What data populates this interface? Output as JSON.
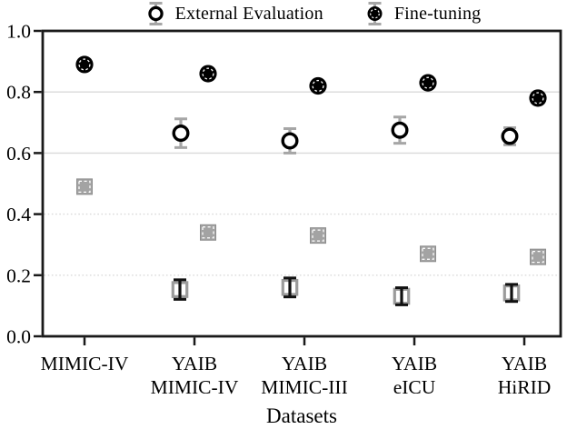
{
  "figure": {
    "legend": [
      {
        "label": "External Evaluation",
        "marker": "open-circle"
      },
      {
        "label": "Fine-tuning",
        "marker": "filled-circle"
      }
    ]
  },
  "chart_data": {
    "type": "scatter",
    "title": "",
    "xlabel": "Datasets",
    "ylabel": "",
    "ylim": [
      0.0,
      1.0
    ],
    "yticks": [
      0.0,
      0.2,
      0.4,
      0.6,
      0.8,
      1.0
    ],
    "gridlines": {
      "solid": [
        0.6,
        0.8
      ],
      "dotted": [
        0.2,
        0.4
      ]
    },
    "legend_position": "top",
    "categories": [
      {
        "lines": [
          "MIMIC-IV"
        ]
      },
      {
        "lines": [
          "YAIB",
          "MIMIC-IV"
        ]
      },
      {
        "lines": [
          "YAIB",
          "MIMIC-III"
        ]
      },
      {
        "lines": [
          "YAIB",
          "eICU"
        ]
      },
      {
        "lines": [
          "YAIB",
          "HiRID"
        ]
      }
    ],
    "series": [
      {
        "name": "unlabeled-filled-square",
        "in_legend": false,
        "marker": "filled-square",
        "values": [
          0.49,
          0.34,
          0.33,
          0.27,
          0.26
        ],
        "dodge": [
          0,
          15,
          15,
          15,
          15
        ]
      },
      {
        "name": "Fine-tuning",
        "in_legend": true,
        "marker": "filled-circle",
        "values": [
          0.89,
          0.86,
          0.82,
          0.83,
          0.78
        ],
        "dodge": [
          0,
          15,
          15,
          15,
          15
        ]
      },
      {
        "name": "unlabeled-open-square",
        "in_legend": false,
        "marker": "open-square",
        "values": [
          null,
          0.153,
          0.16,
          0.131,
          0.142
        ],
        "err": [
          null,
          0.032,
          0.031,
          0.028,
          0.028
        ],
        "dodge": [
          0,
          -16,
          -16,
          -14,
          -14
        ]
      },
      {
        "name": "External Evaluation",
        "in_legend": true,
        "marker": "open-circle",
        "values": [
          null,
          0.665,
          0.64,
          0.675,
          0.655
        ],
        "err": [
          null,
          0.047,
          0.04,
          0.043,
          0.028
        ],
        "dodge": [
          0,
          -15,
          -16,
          -16,
          -16
        ]
      }
    ],
    "colors": {
      "background": "#ffffff",
      "axis": "#1a1a1a",
      "text": "#000000",
      "gridline": "#d9d9d9",
      "marker_black": "#000000",
      "marker_gray_fill": "#a3a3a3",
      "marker_gray_edge": "#8e8e8e",
      "open_square_edge": "#9b9b9b",
      "errorbar_gray": "#a6a6a6",
      "errorbar_black": "#111111"
    }
  }
}
